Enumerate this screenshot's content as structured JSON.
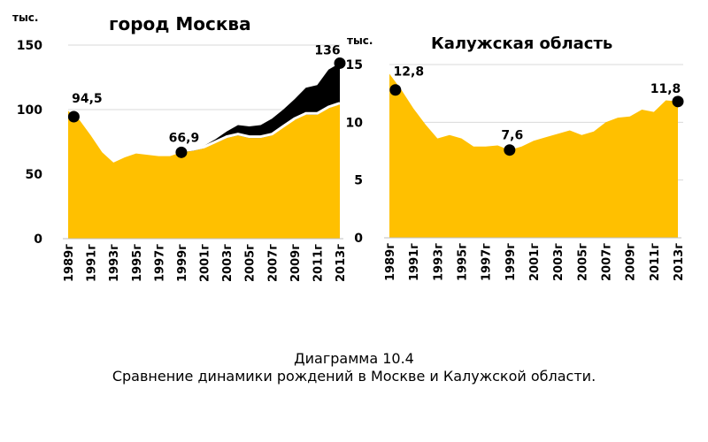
{
  "caption": {
    "line1": "Диаграмма 10.4",
    "line2": "Сравнение динамики рождений в Москве и Калужской области."
  },
  "colors": {
    "main": "#FFC000",
    "extra": "#000000",
    "gap": "#FFFFFF",
    "grid": "#D9D9D9",
    "marker": "#000000"
  },
  "chart_data": [
    {
      "type": "area",
      "title": "город Москва",
      "unit": "тыс.",
      "ylim": [
        0,
        150
      ],
      "yticks": [
        0,
        50,
        100,
        150
      ],
      "grid": true,
      "x_tick_labels": [
        "1989г",
        "1991г",
        "1993г",
        "1995г",
        "1997г",
        "1999г",
        "2001г",
        "2003г",
        "2005г",
        "2007г",
        "2009г",
        "2011г",
        "2013г"
      ],
      "x": [
        1989,
        1990,
        1991,
        1992,
        1993,
        1994,
        1995,
        1996,
        1997,
        1998,
        1999,
        2000,
        2001,
        2002,
        2003,
        2004,
        2005,
        2006,
        2007,
        2008,
        2009,
        2010,
        2011,
        2012,
        2013
      ],
      "series": [
        {
          "values": [
            99,
            92,
            80,
            67,
            59,
            63,
            66,
            65,
            64,
            64,
            67,
            68,
            70,
            74,
            78,
            80,
            78,
            78,
            80,
            86,
            92,
            96,
            96,
            101,
            104
          ]
        },
        {
          "values": [
            null,
            null,
            null,
            null,
            null,
            null,
            null,
            null,
            null,
            null,
            67,
            69,
            72,
            77,
            83,
            88,
            87,
            88,
            93,
            100,
            108,
            117,
            119,
            131,
            136
          ]
        }
      ],
      "annotations": [
        {
          "x": 1989.5,
          "y": 94.5,
          "label": "94,5"
        },
        {
          "x": 1999,
          "y": 66.9,
          "label": "66,9"
        },
        {
          "x": 2013,
          "y": 136,
          "label": "136"
        }
      ]
    },
    {
      "type": "area",
      "title": "Калужская область",
      "unit": "тыс.",
      "ylim": [
        0,
        15
      ],
      "yticks": [
        0,
        5,
        10,
        15
      ],
      "grid": true,
      "x_tick_labels": [
        "1989г",
        "1991г",
        "1993г",
        "1995г",
        "1997г",
        "1999г",
        "2001г",
        "2003г",
        "2005г",
        "2007г",
        "2009г",
        "2011г",
        "2013г"
      ],
      "x": [
        1989,
        1990,
        1991,
        1992,
        1993,
        1994,
        1995,
        1996,
        1997,
        1998,
        1999,
        2000,
        2001,
        2002,
        2003,
        2004,
        2005,
        2006,
        2007,
        2008,
        2009,
        2010,
        2011,
        2012,
        2013
      ],
      "series": [
        {
          "values": [
            14.2,
            12.8,
            11.2,
            9.8,
            8.6,
            8.9,
            8.6,
            7.9,
            7.9,
            8.0,
            7.6,
            7.9,
            8.4,
            8.7,
            9.0,
            9.3,
            8.9,
            9.2,
            10.0,
            10.4,
            10.5,
            11.1,
            10.9,
            11.9,
            11.8
          ]
        }
      ],
      "annotations": [
        {
          "x": 1989.5,
          "y": 12.8,
          "label": "12,8"
        },
        {
          "x": 1999,
          "y": 7.6,
          "label": "7,6"
        },
        {
          "x": 2013,
          "y": 11.8,
          "label": "11,8"
        }
      ]
    }
  ]
}
